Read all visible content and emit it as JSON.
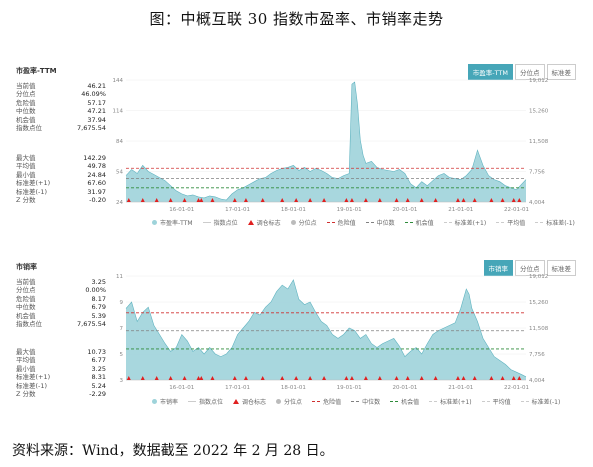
{
  "title": "图：中概互联 30 指数市盈率、市销率走势",
  "footer": "资料来源：Wind，数据截至 2022 年 2 月 28 日。",
  "colors": {
    "area": "#9ed3da",
    "area_line": "#5fb3c0",
    "danger": "#d03030",
    "median": "#808080",
    "opportunity": "#2e8b3a",
    "marker": "#e02020",
    "accent": "#46a6b8"
  },
  "legend_labels": [
    "市盈率-TTM",
    "指数点位",
    "调仓标志",
    "分位点",
    "危险值",
    "中位数",
    "机会值",
    "标准差(+1)",
    "平均值",
    "标准差(-1)"
  ],
  "legend_labels_ps": [
    "市销率",
    "指数点位",
    "调仓标志",
    "分位点",
    "危险值",
    "中位数",
    "机会值",
    "标准差(+1)",
    "平均值",
    "标准差(-1)"
  ],
  "panels": [
    {
      "title": "市盈率-TTM",
      "tabs": [
        "市盈率-TTM",
        "分位点",
        "标准差"
      ],
      "stats_top": [
        {
          "label": "当前值",
          "value": "46.21"
        },
        {
          "label": "分位点",
          "value": "46.09%"
        },
        {
          "label": "危险值",
          "value": "57.17"
        },
        {
          "label": "中位数",
          "value": "47.21"
        },
        {
          "label": "机会值",
          "value": "37.94"
        },
        {
          "label": "指数点位",
          "value": "7,675.54"
        }
      ],
      "stats_bottom": [
        {
          "label": "最大值",
          "value": "142.29"
        },
        {
          "label": "平均值",
          "value": "49.78"
        },
        {
          "label": "最小值",
          "value": "24.84"
        },
        {
          "label": "标准差(+1)",
          "value": "67.60"
        },
        {
          "label": "标准差(-1)",
          "value": "31.97"
        },
        {
          "label": "Z 分数",
          "value": "-0.20"
        }
      ]
    },
    {
      "title": "市销率",
      "tabs": [
        "市销率",
        "分位点",
        "标准差"
      ],
      "stats_top": [
        {
          "label": "当前值",
          "value": "3.25"
        },
        {
          "label": "分位点",
          "value": "0.00%"
        },
        {
          "label": "危险值",
          "value": "8.17"
        },
        {
          "label": "中位数",
          "value": "6.79"
        },
        {
          "label": "机会值",
          "value": "5.39"
        },
        {
          "label": "指数点位",
          "value": "7,675.54"
        }
      ],
      "stats_bottom": [
        {
          "label": "最大值",
          "value": "10.73"
        },
        {
          "label": "平均值",
          "value": "6.77"
        },
        {
          "label": "最小值",
          "value": "3.25"
        },
        {
          "label": "标准差(+1)",
          "value": "8.31"
        },
        {
          "label": "标准差(-1)",
          "value": "5.24"
        },
        {
          "label": "Z 分数",
          "value": "-2.29"
        }
      ]
    }
  ],
  "chart_data": [
    {
      "type": "area",
      "series_label": "市盈率-TTM",
      "x_tick_labels": [
        "16-01-01",
        "17-01-01",
        "18-01-01",
        "19-01-01",
        "20-01-01",
        "21-01-01",
        "22-01-01"
      ],
      "x_ticks_date": [
        2016.0,
        2017.0,
        2018.0,
        2019.0,
        2020.0,
        2021.0,
        2022.0
      ],
      "x_range": [
        2015.0,
        2022.17
      ],
      "y_left_ticks": [
        "144",
        "114",
        "84",
        "54",
        "24"
      ],
      "y_left_range": [
        24,
        144
      ],
      "y_right_ticks": [
        "19,012",
        "15,260",
        "11,508",
        "7,756",
        "4,004"
      ],
      "y_right_range": [
        4004,
        19012
      ],
      "ref_lines": {
        "danger": 57.17,
        "median": 47.21,
        "opportunity": 37.94
      },
      "series": [
        {
          "x": [
            2015.0,
            2015.1,
            2015.2,
            2015.3,
            2015.4,
            2015.5,
            2015.6,
            2015.7,
            2015.8,
            2015.9,
            2016.0,
            2016.1,
            2016.2,
            2016.3,
            2016.4,
            2016.5,
            2016.6,
            2016.7,
            2016.8,
            2016.9,
            2017.0,
            2017.1,
            2017.2,
            2017.3,
            2017.4,
            2017.5,
            2017.6,
            2017.7,
            2017.8,
            2017.9,
            2018.0,
            2018.1,
            2018.2,
            2018.3,
            2018.4,
            2018.5,
            2018.6,
            2018.7,
            2018.8,
            2018.9,
            2019.0,
            2019.05,
            2019.1,
            2019.15,
            2019.2,
            2019.25,
            2019.3,
            2019.4,
            2019.5,
            2019.6,
            2019.7,
            2019.8,
            2019.9,
            2020.0,
            2020.1,
            2020.2,
            2020.3,
            2020.4,
            2020.5,
            2020.6,
            2020.7,
            2020.8,
            2020.9,
            2021.0,
            2021.1,
            2021.2,
            2021.3,
            2021.4,
            2021.5,
            2021.6,
            2021.7,
            2021.8,
            2021.9,
            2022.0,
            2022.1,
            2022.17
          ],
          "y": [
            50,
            56,
            52,
            60,
            54,
            51,
            48,
            45,
            40,
            35,
            32,
            30,
            31,
            29,
            28,
            30,
            29,
            27,
            26,
            32,
            36,
            38,
            41,
            44,
            47,
            48,
            52,
            55,
            57,
            58,
            60,
            55,
            58,
            54,
            57,
            55,
            52,
            48,
            47,
            50,
            52,
            140,
            142,
            120,
            85,
            70,
            62,
            64,
            58,
            56,
            55,
            54,
            56,
            52,
            42,
            38,
            44,
            40,
            45,
            50,
            52,
            48,
            47,
            46,
            50,
            56,
            75,
            60,
            50,
            46,
            44,
            40,
            38,
            36,
            42,
            46
          ]
        }
      ],
      "adjust_marker_dates": [
        2015.05,
        2015.3,
        2015.55,
        2015.8,
        2016.05,
        2016.3,
        2016.35,
        2016.55,
        2016.95,
        2017.15,
        2017.45,
        2017.8,
        2018.05,
        2018.3,
        2018.55,
        2018.95,
        2019.05,
        2019.3,
        2019.55,
        2019.85,
        2020.05,
        2020.3,
        2020.55,
        2020.95,
        2021.05,
        2021.25,
        2021.55,
        2021.75,
        2021.95,
        2022.05
      ]
    },
    {
      "type": "area",
      "series_label": "市销率",
      "x_tick_labels": [
        "16-01-01",
        "17-01-01",
        "18-01-01",
        "19-01-01",
        "20-01-01",
        "21-01-01",
        "22-01-01"
      ],
      "x_ticks_date": [
        2016.0,
        2017.0,
        2018.0,
        2019.0,
        2020.0,
        2021.0,
        2022.0
      ],
      "x_range": [
        2015.0,
        2022.17
      ],
      "y_left_ticks": [
        "11",
        "9",
        "7",
        "5",
        "3"
      ],
      "y_left_range": [
        3,
        11
      ],
      "y_right_ticks": [
        "19,012",
        "15,260",
        "11,508",
        "7,756",
        "4,004"
      ],
      "y_right_range": [
        4004,
        19012
      ],
      "ref_lines": {
        "danger": 8.17,
        "median": 6.79,
        "opportunity": 5.39
      },
      "series": [
        {
          "x": [
            2015.0,
            2015.1,
            2015.2,
            2015.3,
            2015.4,
            2015.5,
            2015.6,
            2015.7,
            2015.8,
            2015.9,
            2016.0,
            2016.1,
            2016.2,
            2016.3,
            2016.4,
            2016.5,
            2016.6,
            2016.7,
            2016.8,
            2016.9,
            2017.0,
            2017.1,
            2017.2,
            2017.3,
            2017.4,
            2017.5,
            2017.6,
            2017.7,
            2017.8,
            2017.9,
            2018.0,
            2018.1,
            2018.2,
            2018.3,
            2018.4,
            2018.5,
            2018.6,
            2018.7,
            2018.8,
            2018.9,
            2019.0,
            2019.1,
            2019.2,
            2019.3,
            2019.4,
            2019.5,
            2019.6,
            2019.7,
            2019.8,
            2019.9,
            2020.0,
            2020.1,
            2020.2,
            2020.3,
            2020.4,
            2020.5,
            2020.6,
            2020.7,
            2020.8,
            2020.9,
            2021.0,
            2021.1,
            2021.15,
            2021.2,
            2021.3,
            2021.4,
            2021.5,
            2021.6,
            2021.7,
            2021.8,
            2021.9,
            2022.0,
            2022.1,
            2022.17
          ],
          "y": [
            8.5,
            9.0,
            7.5,
            8.2,
            8.6,
            7.2,
            6.5,
            5.8,
            5.2,
            5.5,
            6.5,
            6.0,
            5.2,
            5.5,
            5.0,
            5.5,
            5.0,
            4.8,
            5.0,
            5.5,
            6.5,
            7.0,
            7.5,
            8.2,
            8.0,
            8.6,
            9.0,
            9.8,
            10.3,
            10.0,
            10.7,
            9.2,
            8.8,
            9.0,
            8.2,
            7.5,
            7.2,
            6.5,
            6.2,
            6.5,
            7.0,
            6.8,
            6.2,
            6.5,
            5.8,
            5.5,
            5.8,
            6.0,
            6.2,
            5.6,
            4.8,
            5.2,
            5.5,
            5.0,
            5.8,
            6.5,
            6.8,
            7.0,
            7.2,
            7.4,
            8.5,
            10.0,
            9.6,
            8.5,
            7.5,
            6.2,
            5.5,
            4.8,
            4.5,
            4.2,
            3.8,
            3.6,
            3.4,
            3.25
          ]
        }
      ],
      "adjust_marker_dates": [
        2015.05,
        2015.3,
        2015.55,
        2015.8,
        2016.05,
        2016.3,
        2016.35,
        2016.55,
        2016.95,
        2017.15,
        2017.45,
        2017.8,
        2018.05,
        2018.3,
        2018.55,
        2018.95,
        2019.05,
        2019.3,
        2019.55,
        2019.85,
        2020.05,
        2020.3,
        2020.55,
        2020.95,
        2021.05,
        2021.25,
        2021.55,
        2021.75,
        2021.95,
        2022.05
      ]
    }
  ]
}
